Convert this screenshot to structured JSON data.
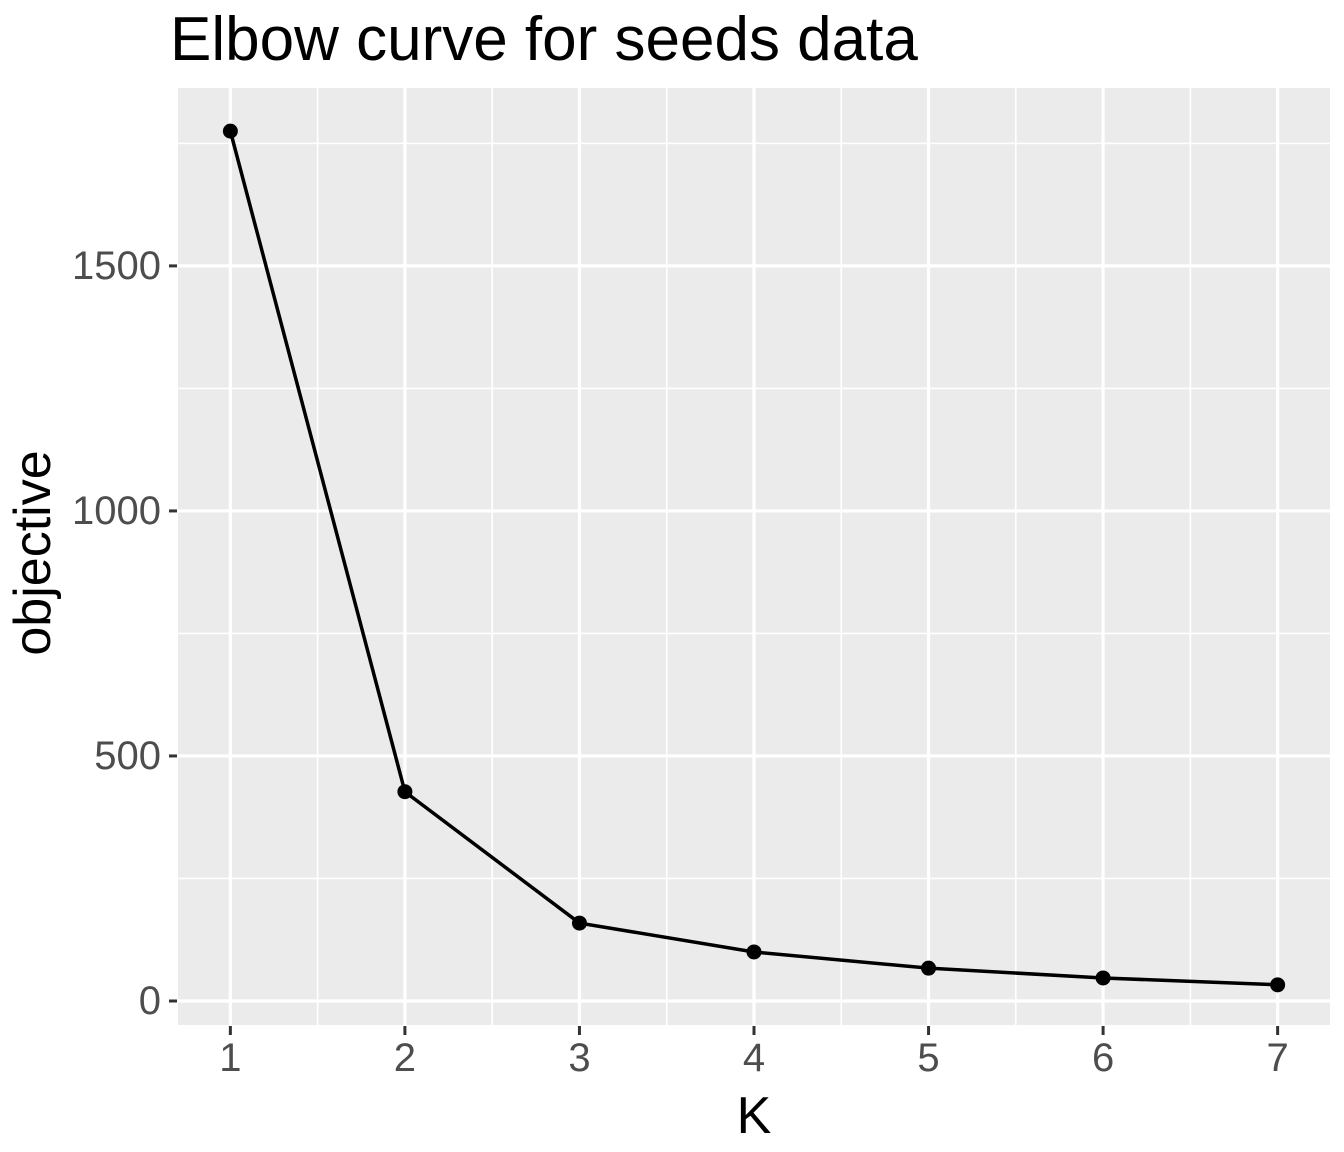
{
  "chart_data": {
    "type": "line",
    "title": "Elbow curve for seeds data",
    "xlabel": "K",
    "ylabel": "objective",
    "x": [
      1,
      2,
      3,
      4,
      5,
      6,
      7
    ],
    "series": [
      {
        "name": "objective",
        "values": [
          1775,
          427,
          159,
          100,
          67,
          47,
          33
        ]
      }
    ],
    "x_ticks": [
      1,
      2,
      3,
      4,
      5,
      6,
      7
    ],
    "x_tick_labels": [
      "1",
      "2",
      "3",
      "4",
      "5",
      "6",
      "7"
    ],
    "y_ticks": [
      0,
      500,
      1000,
      1500
    ],
    "y_tick_labels": [
      "0",
      "500",
      "1000",
      "1500"
    ],
    "x_minor_gridlines": [
      1.5,
      2.5,
      3.5,
      4.5,
      5.5,
      6.5
    ],
    "y_minor_gridlines": [
      250,
      750,
      1250,
      1750
    ],
    "xlim": [
      0.7,
      7.3
    ],
    "ylim": [
      -49,
      1863
    ],
    "grid": "major-and-minor",
    "legend": "none",
    "style": "ggplot2-grey-theme",
    "colors": {
      "background": "#FFFFFF",
      "panel_bg": "#EBEBEB",
      "grid": "#FFFFFF",
      "line": "#000000",
      "point": "#000000",
      "tick_label": "#4D4D4D",
      "axis_label": "#000000",
      "tick_mark": "#333333"
    }
  }
}
